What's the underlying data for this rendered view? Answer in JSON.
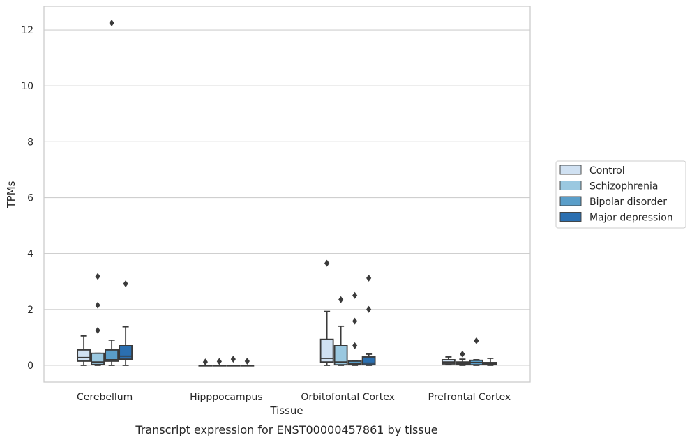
{
  "caption": "Transcript expression for ENST00000457861 by tissue",
  "colors": {
    "Control": "#d0e1f2",
    "Schizophrenia": "#9ac8e0",
    "Bipolar disorder": "#5a9ec9",
    "Major depression": "#2b6fb0",
    "grid": "#cfcfcf",
    "frame": "#cccccc",
    "box_line": "#3a3a3a"
  },
  "chart_data": {
    "type": "box",
    "title": "",
    "xlabel": "Tissue",
    "ylabel": "TPMs",
    "ylim": [
      -0.6,
      12.85
    ],
    "yticks": [
      0,
      2,
      4,
      6,
      8,
      10,
      12
    ],
    "ytick_labels": [
      "0",
      "2",
      "4",
      "6",
      "8",
      "10",
      "12"
    ],
    "grid": "horizontal",
    "legend_position": "right",
    "categories": [
      "Cerebellum",
      "Hipppocampus",
      "Orbitofontal Cortex",
      "Prefrontal Cortex"
    ],
    "series": [
      {
        "name": "Control",
        "boxes": [
          {
            "whislo": 0.0,
            "q1": 0.15,
            "med": 0.28,
            "q3": 0.55,
            "whishi": 1.05,
            "fliers": []
          },
          {
            "whislo": 0.0,
            "q1": 0.0,
            "med": 0.0,
            "q3": 0.0,
            "whishi": 0.0,
            "fliers": [
              0.12
            ]
          },
          {
            "whislo": 0.0,
            "q1": 0.12,
            "med": 0.25,
            "q3": 0.93,
            "whishi": 1.93,
            "fliers": [
              3.65
            ]
          },
          {
            "whislo": 0.02,
            "q1": 0.05,
            "med": 0.12,
            "q3": 0.2,
            "whishi": 0.3,
            "fliers": []
          }
        ]
      },
      {
        "name": "Schizophrenia",
        "boxes": [
          {
            "whislo": 0.0,
            "q1": 0.03,
            "med": 0.12,
            "q3": 0.43,
            "whishi": 0.43,
            "fliers": [
              1.25,
              2.15,
              3.18
            ]
          },
          {
            "whislo": 0.0,
            "q1": 0.0,
            "med": 0.0,
            "q3": 0.0,
            "whishi": 0.0,
            "fliers": [
              0.14
            ]
          },
          {
            "whislo": 0.0,
            "q1": 0.02,
            "med": 0.12,
            "q3": 0.7,
            "whishi": 1.4,
            "fliers": [
              2.35
            ]
          },
          {
            "whislo": 0.0,
            "q1": 0.02,
            "med": 0.05,
            "q3": 0.12,
            "whishi": 0.22,
            "fliers": [
              0.4
            ]
          }
        ]
      },
      {
        "name": "Bipolar disorder",
        "boxes": [
          {
            "whislo": 0.0,
            "q1": 0.15,
            "med": 0.2,
            "q3": 0.55,
            "whishi": 0.9,
            "fliers": [
              12.25
            ]
          },
          {
            "whislo": 0.0,
            "q1": 0.0,
            "med": 0.0,
            "q3": 0.0,
            "whishi": 0.0,
            "fliers": [
              0.22
            ]
          },
          {
            "whislo": 0.0,
            "q1": 0.02,
            "med": 0.05,
            "q3": 0.15,
            "whishi": 0.15,
            "fliers": [
              0.7,
              1.58,
              2.5
            ]
          },
          {
            "whislo": 0.0,
            "q1": 0.02,
            "med": 0.1,
            "q3": 0.18,
            "whishi": 0.2,
            "fliers": [
              0.88
            ]
          }
        ]
      },
      {
        "name": "Major depression",
        "boxes": [
          {
            "whislo": 0.0,
            "q1": 0.22,
            "med": 0.33,
            "q3": 0.7,
            "whishi": 1.38,
            "fliers": [
              2.92
            ]
          },
          {
            "whislo": 0.0,
            "q1": 0.0,
            "med": 0.0,
            "q3": 0.0,
            "whishi": 0.0,
            "fliers": [
              0.15
            ]
          },
          {
            "whislo": 0.0,
            "q1": 0.02,
            "med": 0.08,
            "q3": 0.3,
            "whishi": 0.4,
            "fliers": [
              2.0,
              3.12
            ]
          },
          {
            "whislo": 0.0,
            "q1": 0.02,
            "med": 0.05,
            "q3": 0.1,
            "whishi": 0.25,
            "fliers": []
          }
        ]
      }
    ]
  }
}
